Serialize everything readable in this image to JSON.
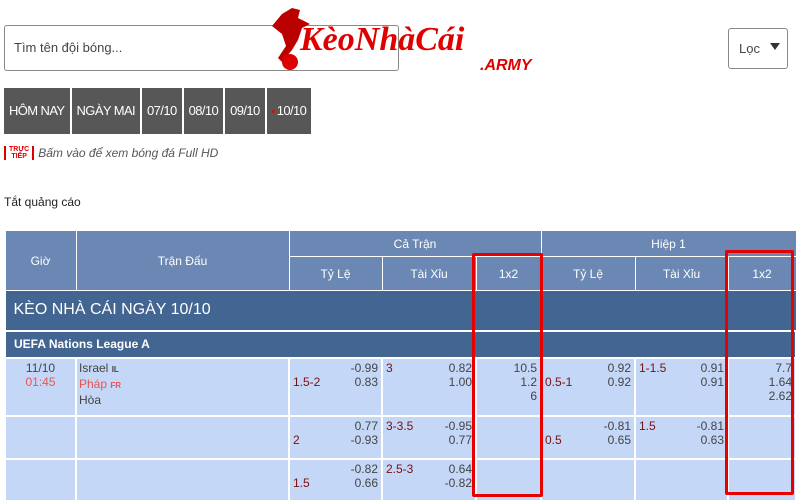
{
  "search": {
    "placeholder": "Tìm tên đội bóng..."
  },
  "logo": {
    "text": "KèoNhàCái",
    "suffix": ".ARMY"
  },
  "filter": {
    "label": "Lọc"
  },
  "tabs": [
    "HÔM NAY",
    "NGÀY MAI",
    "07/10",
    "08/10",
    "09/10",
    "10/10"
  ],
  "live": {
    "badge_top": "TRỰC",
    "badge_bottom": "TIẾP",
    "text": "Bấm vào để xem bóng đá Full HD"
  },
  "ads_label": "Tắt quảng cáo",
  "table": {
    "headers": {
      "time": "Giờ",
      "match": "Trận Đấu",
      "full": "Cả Trận",
      "half": "Hiệp 1",
      "handicap": "Tỷ Lệ",
      "ou": "Tài Xỉu",
      "x12": "1x2"
    },
    "section": "KÈO NHÀ CÁI NGÀY 10/10",
    "league": "UEFA Nations League A",
    "match": {
      "date": "11/10",
      "time": "01:45",
      "home": "Israel",
      "home_code": "IL",
      "away": "Pháp",
      "away_code": "FR",
      "draw": "Hòa"
    },
    "rows": [
      {
        "hdp": "1.5-2",
        "hdp_o": [
          "-0.99",
          "0.83"
        ],
        "ou": "3",
        "ou_o": [
          "0.82",
          "1.00"
        ],
        "x12": [
          "10.5",
          "1.2",
          "6"
        ],
        "h_hdp": "0.5-1",
        "h_hdp_o": [
          "0.92",
          "0.92"
        ],
        "h_ou": "1-1.5",
        "h_ou_o": [
          "0.91",
          "0.91"
        ],
        "h_x12": [
          "7.7",
          "1.64",
          "2.62"
        ]
      },
      {
        "hdp": "2",
        "hdp_o": [
          "0.77",
          "-0.93"
        ],
        "ou": "3-3.5",
        "ou_o": [
          "-0.95",
          "0.77"
        ],
        "x12": [],
        "h_hdp": "0.5",
        "h_hdp_o": [
          "-0.81",
          "0.65"
        ],
        "h_ou": "1.5",
        "h_ou_o": [
          "-0.81",
          "0.63"
        ],
        "h_x12": []
      },
      {
        "hdp": "1.5",
        "hdp_o": [
          "-0.82",
          "0.66"
        ],
        "ou": "2.5-3",
        "ou_o": [
          "0.64",
          "-0.82"
        ],
        "x12": [],
        "h_hdp": "",
        "h_hdp_o": [],
        "h_ou": "",
        "h_ou_o": [],
        "h_x12": []
      }
    ]
  },
  "colors": {
    "header": "#6b87b3",
    "section": "#436591",
    "row": "#c4d7f7",
    "highlight": "#e60000"
  }
}
